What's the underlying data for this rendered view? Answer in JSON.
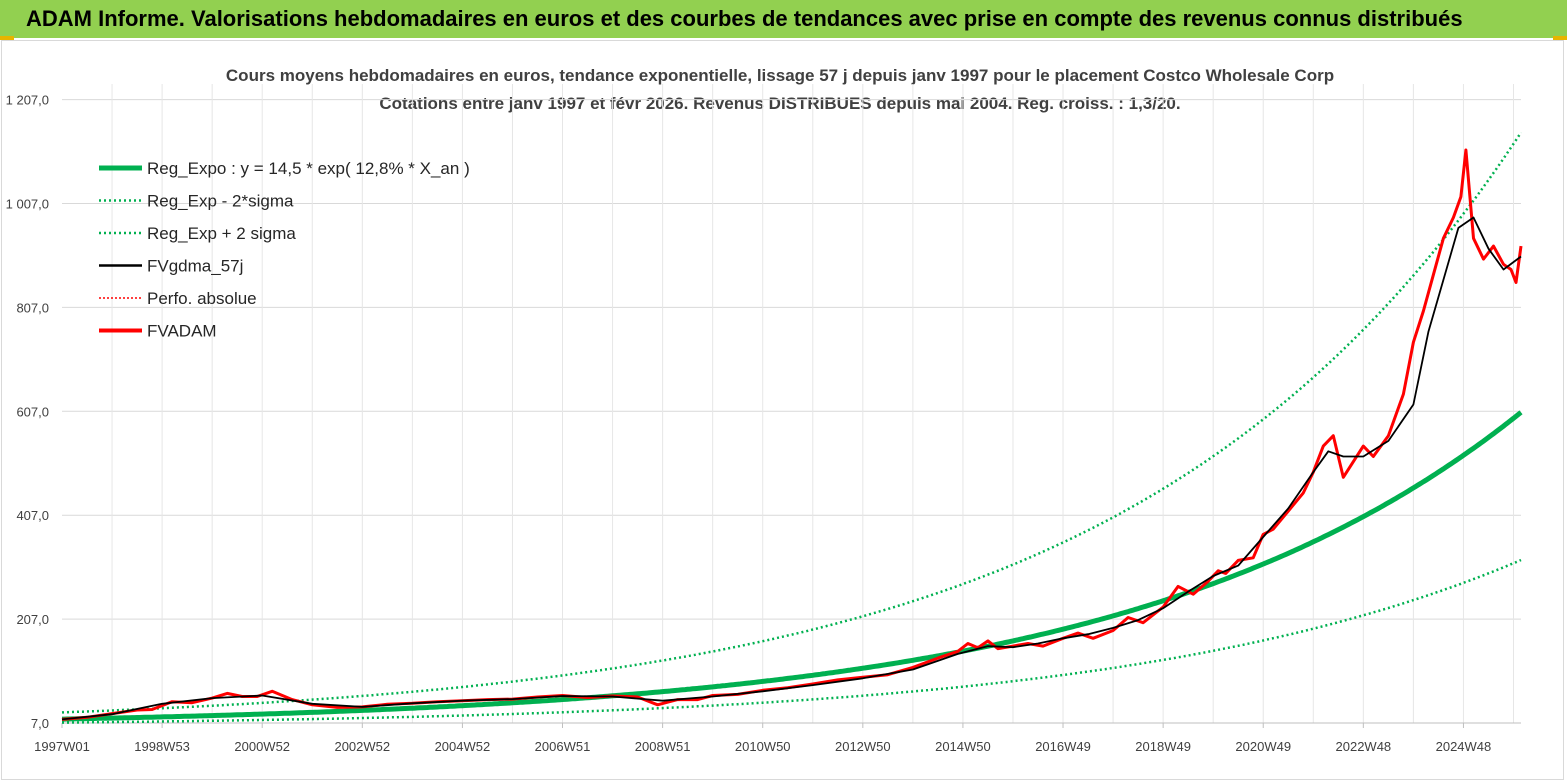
{
  "banner": {
    "title": "ADAM Informe. Valorisations hebdomadaires en euros et des courbes de tendances avec prise en compte des revenus connus distribués"
  },
  "chart_data": {
    "type": "line",
    "title": "Cours moyens hebdomadaires en euros, tendance exponentielle, lissage 57 j depuis janv 1997 pour le placement Costco Wholesale Corp",
    "subtitle": "Cotations entre janv 1997 et févr 2026. Revenus DISTRIBUES depuis mai 2004. Reg. croiss. : 1,3/20.",
    "ylim": [
      7,
      1237
    ],
    "y_ticks": [
      "7,0",
      "207,0",
      "407,0",
      "607,0",
      "807,0",
      "1 007,0",
      "1 207,0"
    ],
    "y_tick_values": [
      7,
      207,
      407,
      607,
      807,
      1007,
      1207
    ],
    "x_range_years": [
      1997.0,
      2026.15
    ],
    "x_ticks": [
      "1997W01",
      "1998W53",
      "2000W52",
      "2002W52",
      "2004W52",
      "2006W51",
      "2008W51",
      "2010W50",
      "2012W50",
      "2014W50",
      "2016W49",
      "2018W49",
      "2020W49",
      "2022W48",
      "2024W48"
    ],
    "x_tick_years": [
      1997.0,
      1999.0,
      2001.0,
      2003.0,
      2005.0,
      2007.0,
      2009.0,
      2011.0,
      2013.0,
      2015.0,
      2017.0,
      2019.0,
      2021.0,
      2023.0,
      2025.0
    ],
    "grid": true,
    "legend_position": "top-left",
    "regression": {
      "a": 14.5,
      "rate": 0.128
    },
    "series": [
      {
        "name": "Reg_Expo : y = 14,5 * exp( 12,8% *  X_an )",
        "color": "#00b050",
        "style": "solid-thick"
      },
      {
        "name": "Reg_Exp - 2*sigma",
        "color": "#00b050",
        "style": "dotted",
        "factor": 0.53
      },
      {
        "name": "Reg_Exp + 2 sigma",
        "color": "#00b050",
        "style": "dotted",
        "factor": 1.89
      },
      {
        "name": "FVgdma_57j",
        "color": "#000000",
        "style": "solid"
      },
      {
        "name": "Perfo. absolue",
        "color": "#ff0000",
        "style": "dotted"
      },
      {
        "name": "FVADAM",
        "color": "#ff0000",
        "style": "solid-thick"
      }
    ],
    "fvadam": {
      "x": [
        1997.0,
        1997.5,
        1998.0,
        1998.5,
        1998.8,
        1999.2,
        1999.6,
        2000.0,
        2000.3,
        2000.6,
        2000.9,
        2001.2,
        2001.6,
        2002.0,
        2002.5,
        2003.0,
        2003.5,
        2004.0,
        2004.5,
        2005.0,
        2005.5,
        2006.0,
        2006.5,
        2007.0,
        2007.5,
        2008.0,
        2008.5,
        2008.9,
        2009.3,
        2009.7,
        2010.0,
        2010.5,
        2011.0,
        2011.5,
        2012.0,
        2012.5,
        2013.0,
        2013.5,
        2014.0,
        2014.5,
        2014.9,
        2015.1,
        2015.3,
        2015.5,
        2015.7,
        2016.0,
        2016.3,
        2016.6,
        2017.0,
        2017.3,
        2017.6,
        2018.0,
        2018.3,
        2018.6,
        2019.0,
        2019.3,
        2019.6,
        2019.9,
        2020.1,
        2020.25,
        2020.5,
        2020.8,
        2021.0,
        2021.2,
        2021.5,
        2021.8,
        2022.0,
        2022.2,
        2022.4,
        2022.6,
        2022.8,
        2023.0,
        2023.2,
        2023.5,
        2023.8,
        2024.0,
        2024.2,
        2024.4,
        2024.6,
        2024.8,
        2024.95,
        2025.05,
        2025.2,
        2025.4,
        2025.6,
        2025.8,
        2025.95,
        2026.05,
        2026.15
      ],
      "y": [
        14,
        18,
        25,
        32,
        33,
        48,
        46,
        55,
        64,
        58,
        58,
        68,
        52,
        42,
        37,
        38,
        43,
        45,
        48,
        50,
        52,
        53,
        57,
        60,
        56,
        59,
        57,
        42,
        52,
        52,
        60,
        62,
        70,
        75,
        82,
        90,
        95,
        100,
        114,
        132,
        145,
        160,
        152,
        165,
        150,
        155,
        160,
        155,
        170,
        180,
        170,
        185,
        210,
        200,
        230,
        270,
        255,
        280,
        300,
        295,
        320,
        325,
        370,
        380,
        415,
        450,
        490,
        540,
        560,
        480,
        510,
        540,
        520,
        560,
        640,
        740,
        800,
        870,
        940,
        980,
        1020,
        1110,
        940,
        900,
        925,
        890,
        880,
        855,
        925
      ]
    },
    "fvgdma": {
      "x": [
        1997.0,
        1998.0,
        1999.0,
        2000.0,
        2001.0,
        2002.0,
        2003.0,
        2004.0,
        2005.0,
        2006.0,
        2007.0,
        2008.0,
        2009.0,
        2010.0,
        2011.0,
        2012.0,
        2013.0,
        2014.0,
        2014.9,
        2015.5,
        2016.0,
        2016.5,
        2017.0,
        2017.5,
        2018.0,
        2018.5,
        2019.0,
        2019.5,
        2020.0,
        2020.5,
        2021.0,
        2021.5,
        2022.0,
        2022.3,
        2022.6,
        2023.0,
        2023.5,
        2024.0,
        2024.3,
        2024.6,
        2024.9,
        2025.2,
        2025.5,
        2025.8,
        2026.15
      ],
      "y": [
        14,
        24,
        44,
        55,
        60,
        44,
        38,
        45,
        50,
        53,
        59,
        58,
        50,
        58,
        68,
        80,
        93,
        110,
        140,
        155,
        153,
        160,
        170,
        178,
        190,
        205,
        228,
        260,
        290,
        310,
        365,
        420,
        490,
        530,
        520,
        520,
        550,
        620,
        760,
        860,
        960,
        980,
        920,
        880,
        905
      ]
    }
  }
}
